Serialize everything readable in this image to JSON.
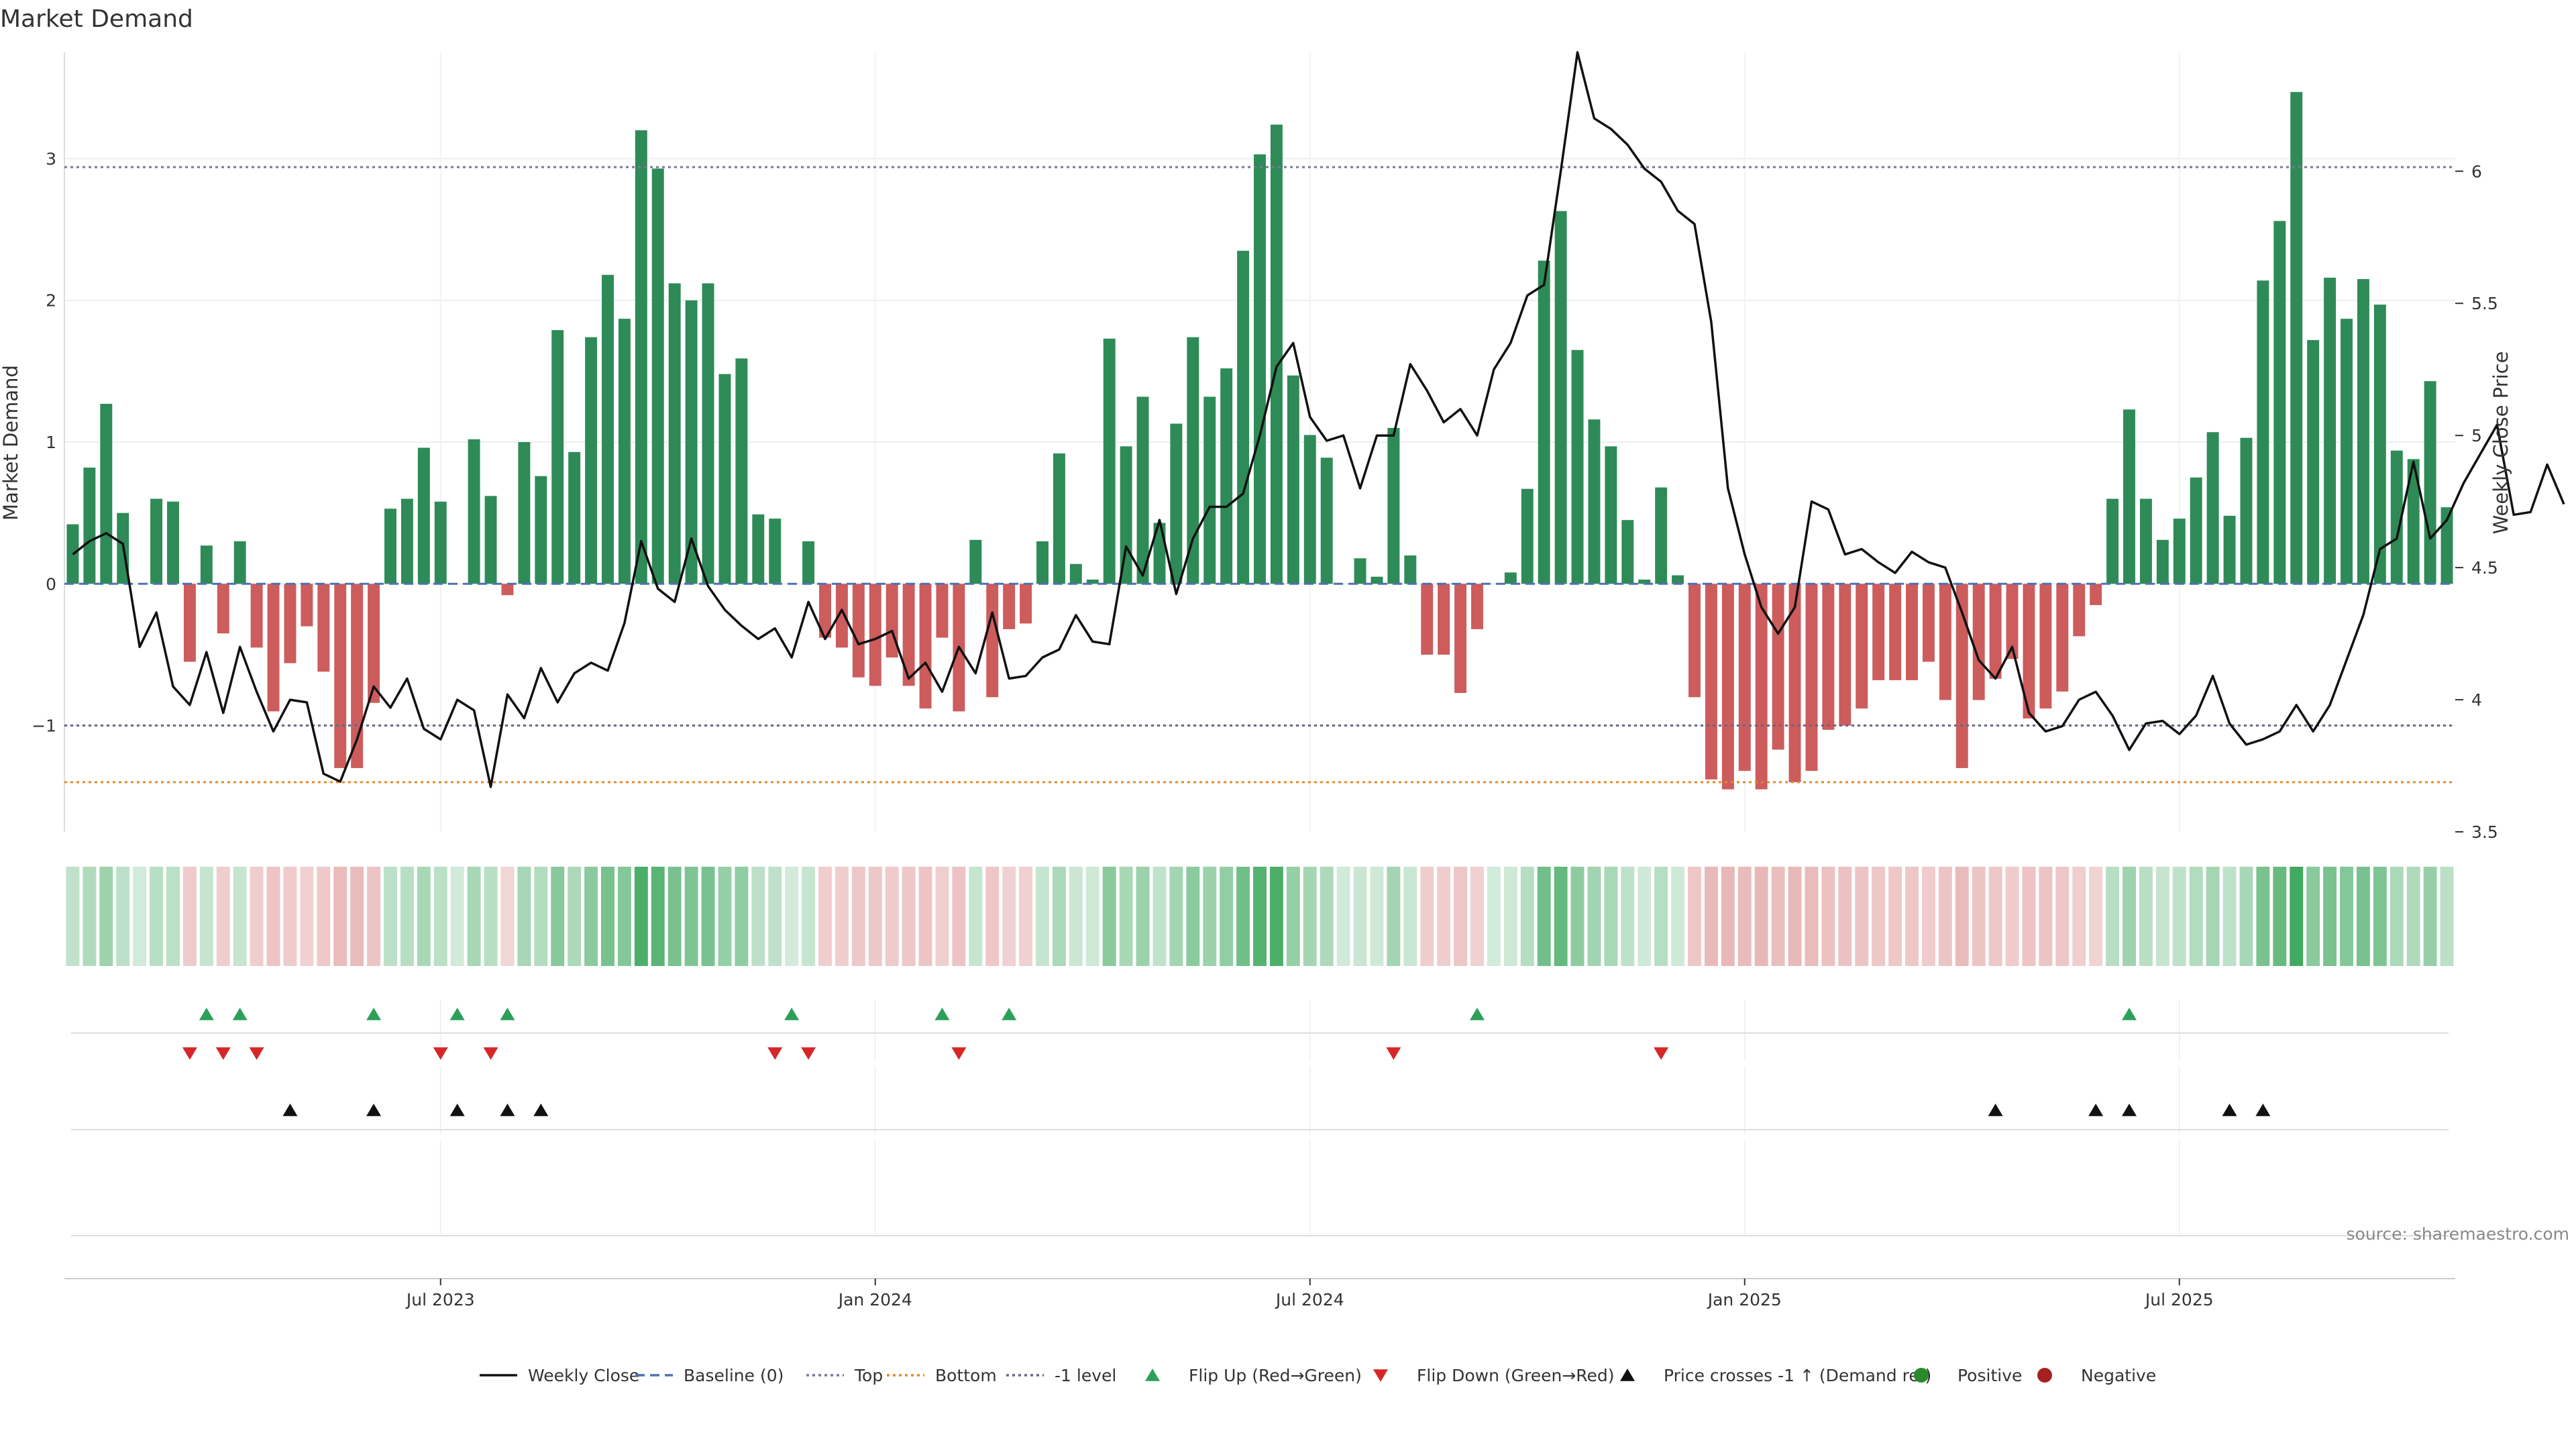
{
  "chart_data": {
    "type": "bar",
    "title": "Market Demand",
    "ylabel": "Market Demand",
    "y2label": "Weekly Close Price",
    "ylim": [
      -1.75,
      3.75
    ],
    "y2lim": [
      3.5,
      6.45
    ],
    "yticks": [
      -1,
      0,
      1,
      2,
      3
    ],
    "y2ticks": [
      3.5,
      4,
      4.5,
      5,
      5.5,
      6
    ],
    "y2tick_labels": [
      "3.5",
      "4",
      "4.5",
      "5",
      "5.5",
      "6"
    ],
    "top_level": 2.94,
    "bottom_level": -1.4,
    "minus_one_level": -1,
    "x_tick_labels": [
      "Jul 2023",
      "Jan 2024",
      "Jul 2024",
      "Jan 2025",
      "Jul 2025"
    ],
    "x_tick_index": [
      22,
      48,
      74,
      100,
      126
    ],
    "demand": [
      0.42,
      0.82,
      1.27,
      0.5,
      0,
      0.6,
      0.58,
      -0.55,
      0.27,
      -0.35,
      0.3,
      -0.45,
      -0.9,
      -0.56,
      -0.3,
      -0.62,
      -1.3,
      -1.3,
      -0.84,
      0.53,
      0.6,
      0.96,
      0.58,
      0,
      1.02,
      0.62,
      -0.08,
      1.0,
      0.76,
      1.79,
      0.93,
      1.74,
      2.18,
      1.87,
      3.2,
      2.93,
      2.12,
      2.0,
      2.12,
      1.48,
      1.59,
      0.49,
      0.46,
      0,
      0.3,
      -0.38,
      -0.45,
      -0.66,
      -0.72,
      -0.52,
      -0.72,
      -0.88,
      -0.38,
      -0.9,
      0.31,
      -0.8,
      -0.32,
      -0.28,
      0.3,
      0.92,
      0.14,
      0.03,
      1.73,
      0.97,
      1.32,
      0.43,
      1.13,
      1.74,
      1.32,
      1.52,
      2.35,
      3.03,
      3.24,
      1.47,
      1.05,
      0.89,
      0,
      0.18,
      0.05,
      1.1,
      0.2,
      -0.5,
      -0.5,
      -0.77,
      -0.32,
      0,
      0.08,
      0.67,
      2.28,
      2.63,
      1.65,
      1.16,
      0.97,
      0.45,
      0.03,
      0.68,
      0.06,
      -0.8,
      -1.38,
      -1.45,
      -1.32,
      -1.45,
      -1.17,
      -1.4,
      -1.32,
      -1.03,
      -1.0,
      -0.88,
      -0.68,
      -0.68,
      -0.68,
      -0.55,
      -0.82,
      -1.3,
      -0.82,
      -0.67,
      -0.53,
      -0.95,
      -0.88,
      -0.76,
      -0.37,
      -0.15,
      0.6,
      1.23,
      0.6,
      0.31,
      0.46,
      0.75,
      1.07,
      0.48,
      1.03,
      2.14,
      2.56,
      3.47,
      1.72,
      2.16,
      1.87,
      2.15,
      1.97,
      0.94,
      0.88,
      1.43,
      0.54
    ],
    "weekly_close": [
      4.55,
      4.6,
      4.63,
      4.59,
      4.2,
      4.33,
      4.05,
      3.98,
      4.18,
      3.95,
      4.2,
      4.03,
      3.88,
      4.0,
      3.99,
      3.72,
      3.69,
      3.85,
      4.05,
      3.97,
      4.08,
      3.89,
      3.85,
      4.0,
      3.96,
      3.67,
      4.02,
      3.93,
      4.12,
      3.99,
      4.1,
      4.14,
      4.11,
      4.29,
      4.6,
      4.42,
      4.37,
      4.61,
      4.43,
      4.34,
      4.28,
      4.23,
      4.27,
      4.16,
      4.37,
      4.23,
      4.34,
      4.21,
      4.23,
      4.26,
      4.08,
      4.14,
      4.03,
      4.2,
      4.1,
      4.33,
      4.08,
      4.09,
      4.16,
      4.19,
      4.32,
      4.22,
      4.21,
      4.58,
      4.47,
      4.68,
      4.4,
      4.61,
      4.73,
      4.73,
      4.78,
      5.0,
      5.26,
      5.35,
      5.07,
      4.98,
      5.0,
      4.8,
      5.0,
      5.0,
      5.27,
      5.17,
      5.05,
      5.1,
      5.0,
      5.25,
      5.35,
      5.53,
      5.57,
      6.0,
      6.45,
      6.2,
      6.16,
      6.1,
      6.01,
      5.96,
      5.85,
      5.8,
      5.43,
      4.8,
      4.55,
      4.35,
      4.25,
      4.35,
      4.75,
      4.72,
      4.55,
      4.57,
      4.52,
      4.48,
      4.56,
      4.52,
      4.5,
      4.33,
      4.15,
      4.08,
      4.2,
      3.95,
      3.88,
      3.9,
      4.0,
      4.03,
      3.94,
      3.81,
      3.91,
      3.92,
      3.87,
      3.94,
      4.09,
      3.91,
      3.83,
      3.85,
      3.88,
      3.98,
      3.88,
      3.98,
      4.15,
      4.32,
      4.57,
      4.61,
      4.9,
      4.61,
      4.68,
      4.82,
      4.93,
      5.04,
      4.7,
      4.71,
      4.89,
      4.74
    ],
    "flip_up": [
      8,
      10,
      18,
      23,
      26,
      43,
      52,
      56,
      84,
      123
    ],
    "flip_down": [
      7,
      9,
      11,
      22,
      25,
      42,
      44,
      53,
      79,
      95
    ],
    "price_cross": [
      13,
      18,
      23,
      26,
      28,
      115,
      121,
      123,
      129,
      131
    ],
    "source": "source: sharemaestro.com",
    "legend": [
      {
        "label": "Weekly Close",
        "kind": "line",
        "color": "#111111"
      },
      {
        "label": "Baseline (0)",
        "kind": "dash",
        "color": "#4c72b0"
      },
      {
        "label": "Top",
        "kind": "dot",
        "color": "#777799"
      },
      {
        "label": "Bottom",
        "kind": "dot",
        "color": "#e08a2c"
      },
      {
        "label": "-1 level",
        "kind": "dot",
        "color": "#666688"
      },
      {
        "label": "Flip Up (Red→Green)",
        "kind": "tri-up",
        "color": "#2ca05a"
      },
      {
        "label": "Flip Down (Green→Red)",
        "kind": "tri-down",
        "color": "#d62728"
      },
      {
        "label": "Price crosses -1 ↑ (Demand ref)",
        "kind": "tri-up",
        "color": "#111111"
      },
      {
        "label": "Positive",
        "kind": "circle",
        "color": "#2a8a2a"
      },
      {
        "label": "Negative",
        "kind": "circle",
        "color": "#a52020"
      }
    ],
    "colors": {
      "positive": "#2e8b57",
      "negative": "#cd5c5c",
      "price": "#111111",
      "top": "#777799",
      "bottom": "#e08a2c"
    }
  }
}
